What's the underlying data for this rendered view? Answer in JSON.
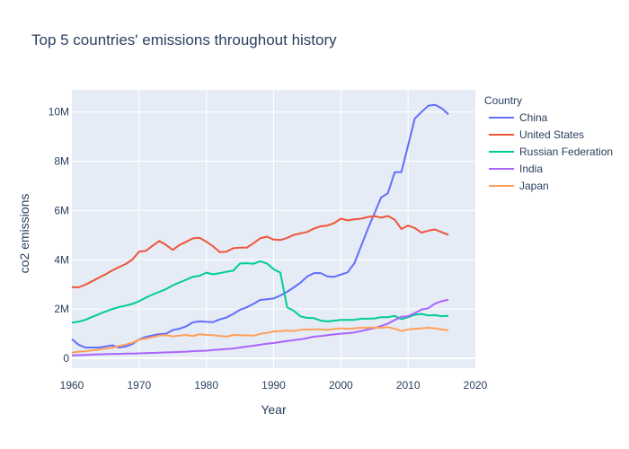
{
  "chart_data": {
    "type": "line",
    "title": "Top 5 countries' emissions throughout history",
    "xlabel": "Year",
    "ylabel": "co2 emissions",
    "xlim": [
      1960,
      2020
    ],
    "ylim": [
      -400000,
      10900000
    ],
    "x_ticks": [
      1960,
      1970,
      1980,
      1990,
      2000,
      2010,
      2020
    ],
    "x_tick_labels": [
      "1960",
      "1970",
      "1980",
      "1990",
      "2000",
      "2010",
      "2020"
    ],
    "y_ticks": [
      0,
      2000000,
      4000000,
      6000000,
      8000000,
      10000000
    ],
    "y_tick_labels": [
      "0",
      "2M",
      "4M",
      "6M",
      "8M",
      "10M"
    ],
    "grid": true,
    "legend_title": "Country",
    "legend_position": "right",
    "background_color": "#e5ecf6",
    "x": [
      1960,
      1961,
      1962,
      1963,
      1964,
      1965,
      1966,
      1967,
      1968,
      1969,
      1970,
      1971,
      1972,
      1973,
      1974,
      1975,
      1976,
      1977,
      1978,
      1979,
      1980,
      1981,
      1982,
      1983,
      1984,
      1985,
      1986,
      1987,
      1988,
      1989,
      1990,
      1991,
      1992,
      1993,
      1994,
      1995,
      1996,
      1997,
      1998,
      1999,
      2000,
      2001,
      2002,
      2003,
      2004,
      2005,
      2006,
      2007,
      2008,
      2009,
      2010,
      2011,
      2012,
      2013,
      2014,
      2015,
      2016
    ],
    "series": [
      {
        "name": "China",
        "color": "#636efa",
        "values": [
          780000,
          550000,
          440000,
          440000,
          440000,
          480000,
          530000,
          440000,
          480000,
          580000,
          770000,
          870000,
          930000,
          980000,
          1000000,
          1150000,
          1200000,
          1300000,
          1460000,
          1500000,
          1480000,
          1470000,
          1580000,
          1660000,
          1800000,
          1970000,
          2070000,
          2210000,
          2370000,
          2400000,
          2430000,
          2550000,
          2700000,
          2880000,
          3070000,
          3320000,
          3460000,
          3460000,
          3320000,
          3310000,
          3400000,
          3490000,
          3850000,
          4550000,
          5250000,
          5890000,
          6530000,
          6700000,
          7550000,
          7560000,
          8650000,
          9730000,
          10000000,
          10250000,
          10290000,
          10150000,
          9900000
        ]
      },
      {
        "name": "United States",
        "color": "#ef553b",
        "values": [
          2890000,
          2880000,
          2990000,
          3130000,
          3270000,
          3410000,
          3570000,
          3700000,
          3830000,
          4010000,
          4330000,
          4360000,
          4570000,
          4760000,
          4600000,
          4400000,
          4600000,
          4730000,
          4870000,
          4890000,
          4730000,
          4550000,
          4310000,
          4330000,
          4470000,
          4490000,
          4490000,
          4670000,
          4870000,
          4940000,
          4820000,
          4800000,
          4890000,
          5010000,
          5070000,
          5130000,
          5270000,
          5360000,
          5390000,
          5490000,
          5670000,
          5600000,
          5640000,
          5670000,
          5740000,
          5770000,
          5710000,
          5780000,
          5630000,
          5250000,
          5390000,
          5290000,
          5100000,
          5180000,
          5230000,
          5120000,
          5010000
        ]
      },
      {
        "name": "Russian Federation",
        "color": "#00cc96",
        "values": [
          1450000,
          1490000,
          1560000,
          1680000,
          1790000,
          1900000,
          2000000,
          2080000,
          2140000,
          2210000,
          2320000,
          2460000,
          2590000,
          2700000,
          2810000,
          2960000,
          3080000,
          3190000,
          3310000,
          3350000,
          3480000,
          3410000,
          3460000,
          3510000,
          3560000,
          3850000,
          3860000,
          3840000,
          3940000,
          3850000,
          3620000,
          3480000,
          2070000,
          1930000,
          1700000,
          1640000,
          1630000,
          1530000,
          1500000,
          1530000,
          1560000,
          1560000,
          1560000,
          1610000,
          1610000,
          1620000,
          1670000,
          1670000,
          1720000,
          1590000,
          1670000,
          1770000,
          1800000,
          1740000,
          1750000,
          1710000,
          1730000
        ]
      },
      {
        "name": "India",
        "color": "#ab63fa",
        "values": [
          120000,
          130000,
          140000,
          150000,
          160000,
          170000,
          180000,
          180000,
          190000,
          190000,
          200000,
          210000,
          220000,
          230000,
          240000,
          250000,
          260000,
          270000,
          290000,
          300000,
          310000,
          340000,
          360000,
          380000,
          400000,
          440000,
          480000,
          510000,
          550000,
          590000,
          620000,
          660000,
          700000,
          740000,
          770000,
          820000,
          880000,
          900000,
          940000,
          970000,
          1000000,
          1020000,
          1050000,
          1110000,
          1170000,
          1230000,
          1310000,
          1410000,
          1550000,
          1690000,
          1710000,
          1830000,
          1980000,
          2030000,
          2220000,
          2320000,
          2380000
        ]
      },
      {
        "name": "Japan",
        "color": "#ffa15a",
        "values": [
          230000,
          270000,
          290000,
          320000,
          360000,
          390000,
          430000,
          500000,
          560000,
          630000,
          760000,
          800000,
          860000,
          920000,
          940000,
          890000,
          920000,
          950000,
          910000,
          980000,
          950000,
          940000,
          910000,
          880000,
          950000,
          940000,
          930000,
          920000,
          990000,
          1030000,
          1090000,
          1100000,
          1120000,
          1110000,
          1160000,
          1170000,
          1180000,
          1180000,
          1160000,
          1190000,
          1220000,
          1200000,
          1220000,
          1240000,
          1250000,
          1250000,
          1240000,
          1270000,
          1200000,
          1110000,
          1170000,
          1200000,
          1220000,
          1240000,
          1210000,
          1170000,
          1140000
        ]
      }
    ]
  }
}
